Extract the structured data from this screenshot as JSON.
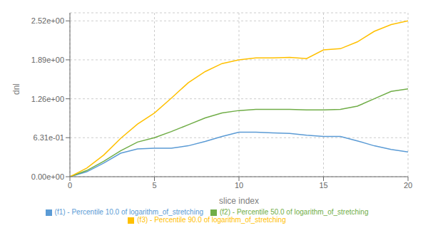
{
  "chart_data": {
    "type": "line",
    "xlabel": "slice index",
    "ylabel": "dnl",
    "x": [
      0,
      1,
      2,
      3,
      4,
      5,
      6,
      7,
      8,
      9,
      10,
      11,
      12,
      13,
      14,
      15,
      16,
      17,
      18,
      19,
      20
    ],
    "series": [
      {
        "name": "(f1) - Percentile 10.0 of logarithm_of_stretching",
        "color": "#5b9bd5",
        "values": [
          0.0,
          0.08,
          0.22,
          0.38,
          0.45,
          0.46,
          0.46,
          0.5,
          0.57,
          0.65,
          0.72,
          0.72,
          0.71,
          0.7,
          0.67,
          0.65,
          0.65,
          0.58,
          0.5,
          0.44,
          0.4
        ]
      },
      {
        "name": "(f2) - Percentile 50.0 of logarithm_of_stretching",
        "color": "#70ad47",
        "values": [
          0.0,
          0.1,
          0.25,
          0.42,
          0.56,
          0.63,
          0.73,
          0.84,
          0.95,
          1.03,
          1.07,
          1.09,
          1.09,
          1.09,
          1.08,
          1.08,
          1.09,
          1.14,
          1.26,
          1.38,
          1.42
        ]
      },
      {
        "name": "(f3) - Percentile 90.0 of logarithm_of_stretching",
        "color": "#ffc000",
        "values": [
          0.0,
          0.14,
          0.35,
          0.62,
          0.85,
          1.03,
          1.27,
          1.52,
          1.7,
          1.83,
          1.89,
          1.92,
          1.92,
          1.93,
          1.91,
          2.05,
          2.07,
          2.18,
          2.35,
          2.46,
          2.52
        ]
      }
    ],
    "xlim": [
      0,
      20
    ],
    "xticks": [
      0,
      5,
      10,
      15,
      20
    ],
    "ylim": [
      0.0,
      2.65
    ],
    "yticks": [
      {
        "value": 0.0,
        "label": "0.00e+00"
      },
      {
        "value": 0.631,
        "label": "6.31e-01"
      },
      {
        "value": 1.26,
        "label": "1.26e+00"
      },
      {
        "value": 1.89,
        "label": "1.89e+00"
      },
      {
        "value": 2.52,
        "label": "2.52e+00"
      }
    ],
    "grid": true,
    "legend": "bottom"
  }
}
